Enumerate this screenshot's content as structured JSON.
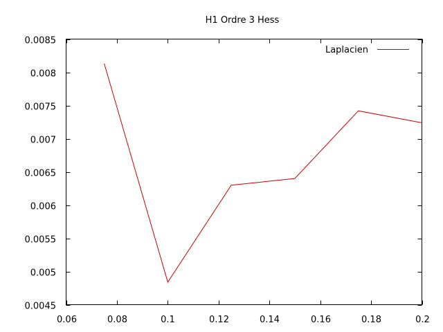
{
  "chart_data": {
    "type": "line",
    "title": "H1 Ordre 3 Hess",
    "xlabel": "",
    "ylabel": "",
    "xlim": [
      0.06,
      0.2
    ],
    "ylim": [
      0.0045,
      0.0085
    ],
    "xticks": [
      "0.06",
      "0.08",
      "0.1",
      "0.12",
      "0.14",
      "0.16",
      "0.18",
      "0.2"
    ],
    "yticks": [
      "0.0045",
      "0.005",
      "0.0055",
      "0.006",
      "0.0065",
      "0.007",
      "0.0075",
      "0.008",
      "0.0085"
    ],
    "grid": false,
    "legend_position": "top-right",
    "series": [
      {
        "name": "Laplacien",
        "color": "#cc0000",
        "x": [
          0.075,
          0.1,
          0.125,
          0.15,
          0.175,
          0.2
        ],
        "y": [
          0.00813,
          0.00484,
          0.0063,
          0.0064,
          0.00742,
          0.00724
        ]
      }
    ]
  }
}
